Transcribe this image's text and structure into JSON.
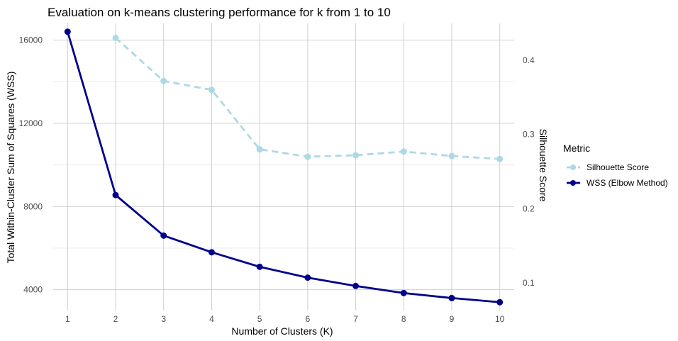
{
  "chart_data": {
    "type": "line",
    "title": "Evaluation on k-means clustering performance for k from 1 to 10",
    "xlabel": "Number of Clusters (K)",
    "ylabel": "Total Within-Cluster Sum of Squares (WSS)",
    "y2label": "Silhouette Score",
    "x": [
      1,
      2,
      3,
      4,
      5,
      6,
      7,
      8,
      9,
      10
    ],
    "xlim": [
      0.7,
      10.3
    ],
    "ylim": [
      3000,
      16800
    ],
    "y2lim": [
      0.063,
      0.4495
    ],
    "y_ticks": [
      4000,
      8000,
      12000,
      16000
    ],
    "y2_ticks": [
      0.1,
      0.2,
      0.3,
      0.4
    ],
    "grid": true,
    "legend_position": "right",
    "legend_title": "Metric",
    "series": [
      {
        "name": "Silhouette Score",
        "axis": "right",
        "color": "#add8e6",
        "line_style": "dashed",
        "x": [
          2,
          3,
          4,
          5,
          6,
          7,
          8,
          9,
          10
        ],
        "values": [
          0.43,
          0.372,
          0.36,
          0.28,
          0.27,
          0.272,
          0.277,
          0.271,
          0.267
        ]
      },
      {
        "name": "WSS (Elbow Method)",
        "axis": "left",
        "color": "#00008b",
        "line_style": "solid",
        "x": [
          1,
          2,
          3,
          4,
          5,
          6,
          7,
          8,
          9,
          10
        ],
        "values": [
          16400,
          8550,
          6600,
          5800,
          5100,
          4580,
          4180,
          3840,
          3600,
          3400
        ]
      }
    ]
  }
}
